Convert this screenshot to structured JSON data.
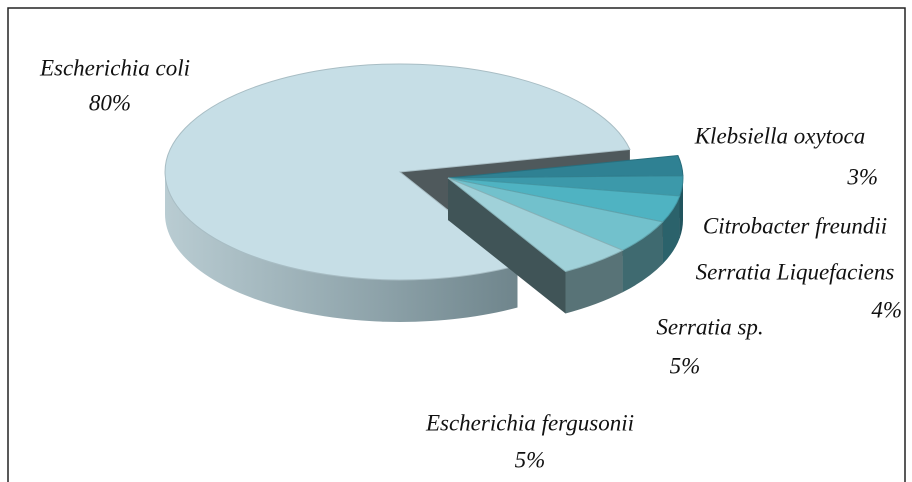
{
  "chart_data": {
    "type": "pie3d",
    "categories": [
      "Klebsiella  oxytoca",
      "Citrobacter freundii",
      "Serratia Liquefaciens",
      "Serratia sp.",
      "Escherichia fergusonii",
      "Escherichia coli"
    ],
    "values": [
      3,
      3,
      4,
      5,
      5,
      80
    ],
    "value_labels": [
      "3%",
      null,
      "4%",
      "5%",
      "5%",
      "80%"
    ],
    "colors": [
      "#2f8193",
      "#3c99aa",
      "#4fb3c2",
      "#72c1cc",
      "#a0d1d9",
      "#c6dee6"
    ]
  }
}
